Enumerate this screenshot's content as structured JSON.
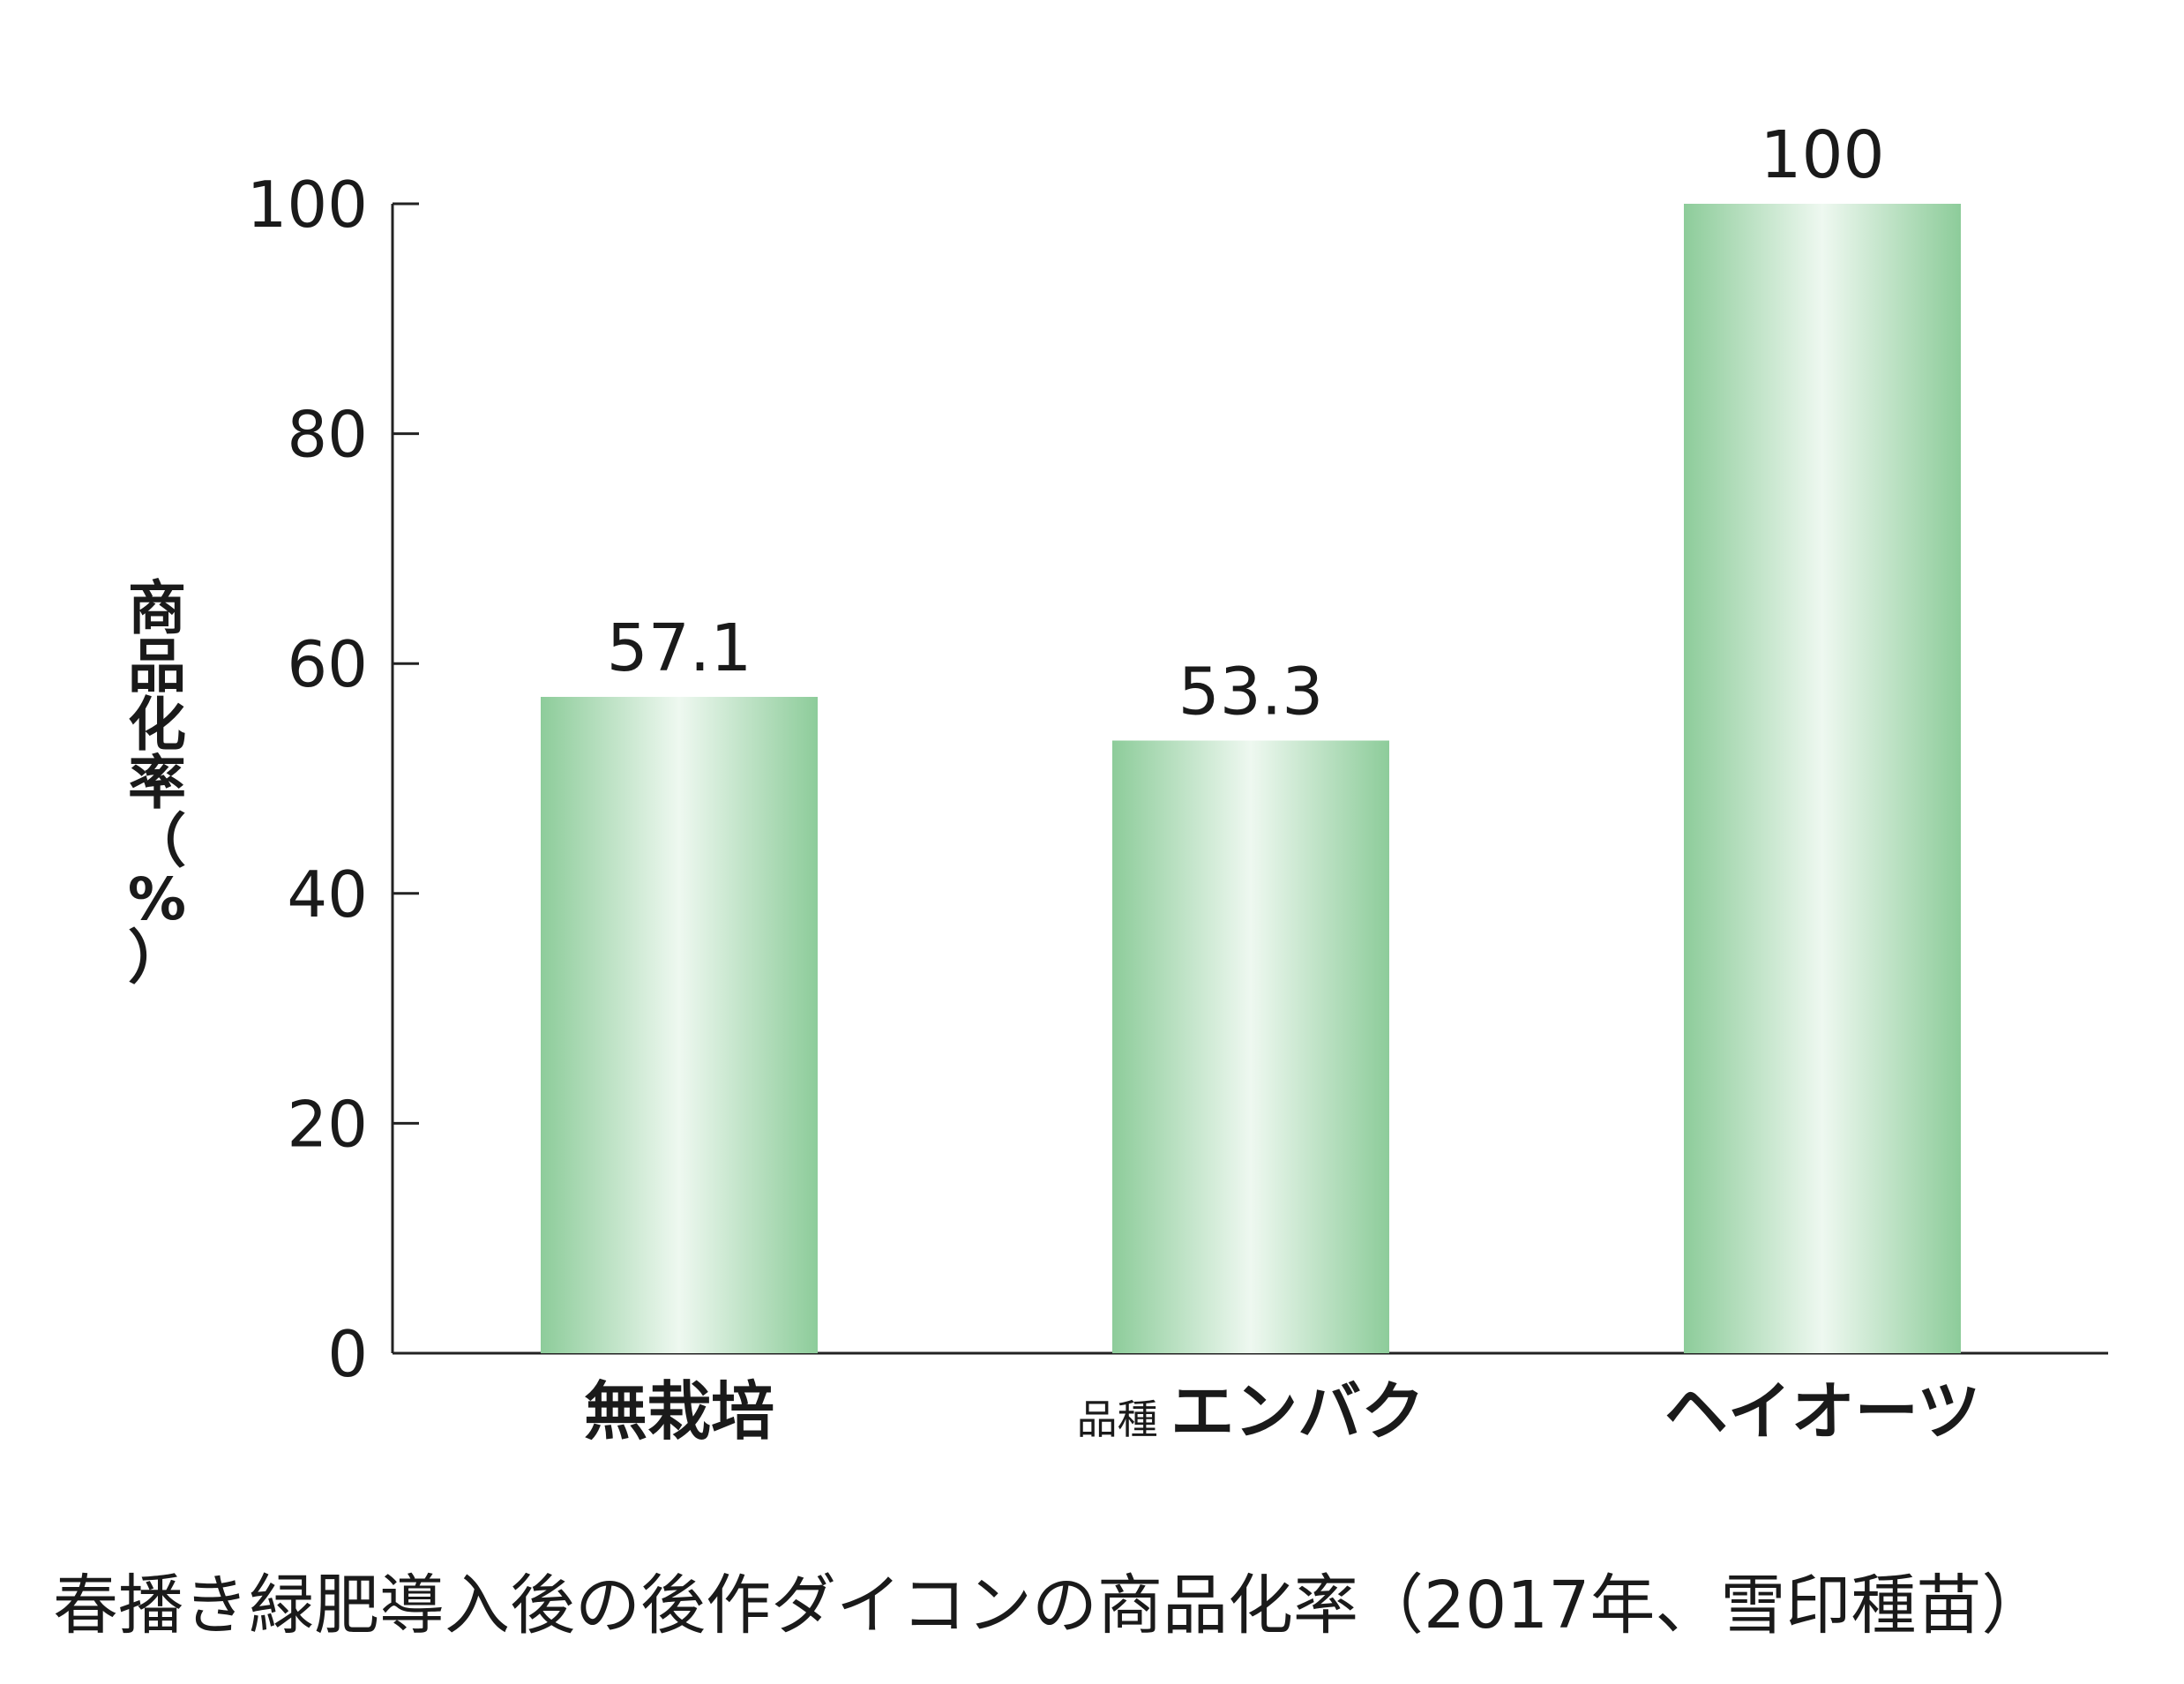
{
  "chart_data": {
    "type": "bar",
    "title": "春播き緑肥導入後の後作ダイコンの商品化率（2017年、雪印種苗）",
    "ylabel": "商品化率（%）",
    "ylabel_chars": [
      "商",
      "品",
      "化",
      "率",
      "（",
      "%",
      "）"
    ],
    "xlabel": "",
    "ylim": [
      0,
      100
    ],
    "yticks": [
      0,
      20,
      40,
      60,
      80,
      100
    ],
    "categories": [
      {
        "prefix": "",
        "label": "無栽培"
      },
      {
        "prefix": "品種",
        "label": "エンバク"
      },
      {
        "prefix": "",
        "label": "ヘイオーツ"
      }
    ],
    "values": [
      57.1,
      53.3,
      100
    ],
    "value_labels": [
      "57.1",
      "53.3",
      "100"
    ],
    "grid": false,
    "bar_style": "green gradient",
    "colors": {
      "bar_edge": "#8dcc9a",
      "bar_center": "#eef8f0",
      "axis": "#222222"
    }
  }
}
